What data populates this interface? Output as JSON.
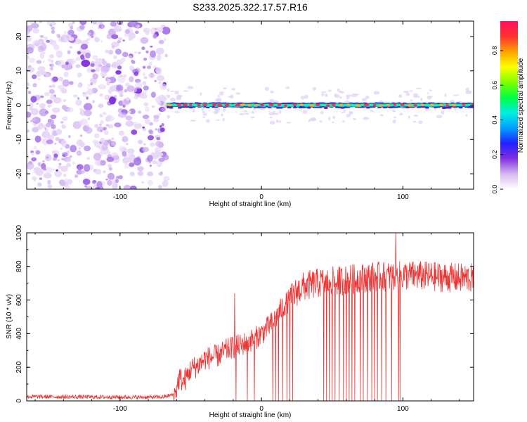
{
  "figure_title": "S233.2025.322.17.57.R16",
  "chart_data": [
    {
      "type": "heatmap",
      "xlabel": "Height of straight line (km)",
      "ylabel": "Frequency (Hz)",
      "xlim": [
        -166,
        150
      ],
      "ylim": [
        -24.5,
        24.5
      ],
      "xticks": [
        -100,
        0,
        100
      ],
      "yticks": [
        -20,
        -10,
        0,
        10,
        20
      ],
      "noise_region_x": [
        -166,
        -67
      ],
      "signal_region_x": [
        -67,
        150
      ],
      "signal_frequency": 0,
      "colorbar": {
        "label": "Normalized spectral amplitude",
        "range": [
          0,
          0.97
        ],
        "ticks": [
          0.0,
          0.2,
          0.4,
          0.6,
          0.8
        ],
        "colors": [
          "#ffffff",
          "#d8b8f0",
          "#8030e0",
          "#2020ff",
          "#00a0ff",
          "#00f0e0",
          "#00ff40",
          "#80ff00",
          "#ffff00",
          "#ffa000",
          "#ff3030",
          "#ff1060"
        ]
      }
    },
    {
      "type": "line",
      "xlabel": "Height of straight line (km)",
      "ylabel": "SNR (10 * v/v)",
      "xlim": [
        -166,
        150
      ],
      "ylim": [
        0,
        1000
      ],
      "xticks": [
        -100,
        0,
        100
      ],
      "yticks": [
        0,
        200,
        400,
        600,
        800,
        1000
      ],
      "color": "#ee3333",
      "profile": {
        "x": [
          -166,
          -90,
          -70,
          -61,
          -58,
          -55,
          -50,
          -45,
          -40,
          -35,
          -30,
          -25,
          -20,
          -15,
          -10,
          -5,
          0,
          5,
          10,
          15,
          20,
          25,
          30,
          40,
          50,
          60,
          70,
          80,
          90,
          100,
          110,
          120,
          130,
          140,
          150
        ],
        "y": [
          25,
          22,
          22,
          40,
          140,
          110,
          190,
          210,
          250,
          260,
          270,
          300,
          320,
          330,
          350,
          370,
          400,
          440,
          490,
          560,
          600,
          650,
          680,
          700,
          710,
          720,
          730,
          740,
          740,
          745,
          745,
          740,
          735,
          730,
          730
        ]
      },
      "spikes": [
        {
          "x": -19,
          "y": 640
        },
        {
          "x": 95,
          "y": 1000
        }
      ],
      "dropouts_x": [
        -18,
        -10,
        -5,
        8,
        10,
        12,
        15,
        18,
        20,
        22,
        44,
        46,
        48,
        50,
        52,
        55,
        58,
        60,
        62,
        64,
        66,
        70,
        72,
        75,
        78,
        80,
        82,
        85,
        88,
        92,
        97,
        98
      ]
    }
  ]
}
